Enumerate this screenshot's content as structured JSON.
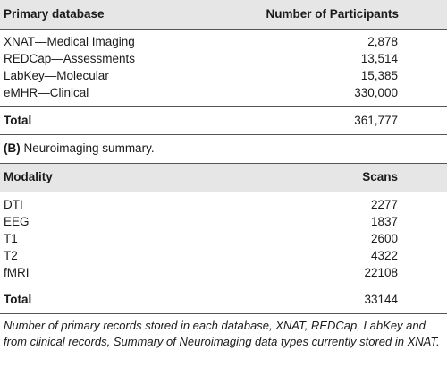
{
  "table_a": {
    "header": {
      "col1": "Primary database",
      "col2": "Number of Participants"
    },
    "rows": [
      {
        "name": "XNAT—Medical Imaging",
        "value": "2,878"
      },
      {
        "name": "REDCap—Assessments",
        "value": "13,514"
      },
      {
        "name": "LabKey—Molecular",
        "value": "15,385"
      },
      {
        "name": "eMHR—Clinical",
        "value": "330,000"
      }
    ],
    "total": {
      "label": "Total",
      "value": "361,777"
    }
  },
  "section_b": {
    "tag": "(B)",
    "title": "Neuroimaging summary."
  },
  "table_b": {
    "header": {
      "col1": "Modality",
      "col2": "Scans"
    },
    "rows": [
      {
        "name": "DTI",
        "value": "2277"
      },
      {
        "name": "EEG",
        "value": "1837"
      },
      {
        "name": "T1",
        "value": "2600"
      },
      {
        "name": "T2",
        "value": "4322"
      },
      {
        "name": "fMRI",
        "value": "22108"
      }
    ],
    "total": {
      "label": "Total",
      "value": "33144"
    }
  },
  "caption": "Number of primary records stored in each database, XNAT, REDCap, LabKey and from clinical records, Summary of Neuroimaging data types currently stored in XNAT."
}
